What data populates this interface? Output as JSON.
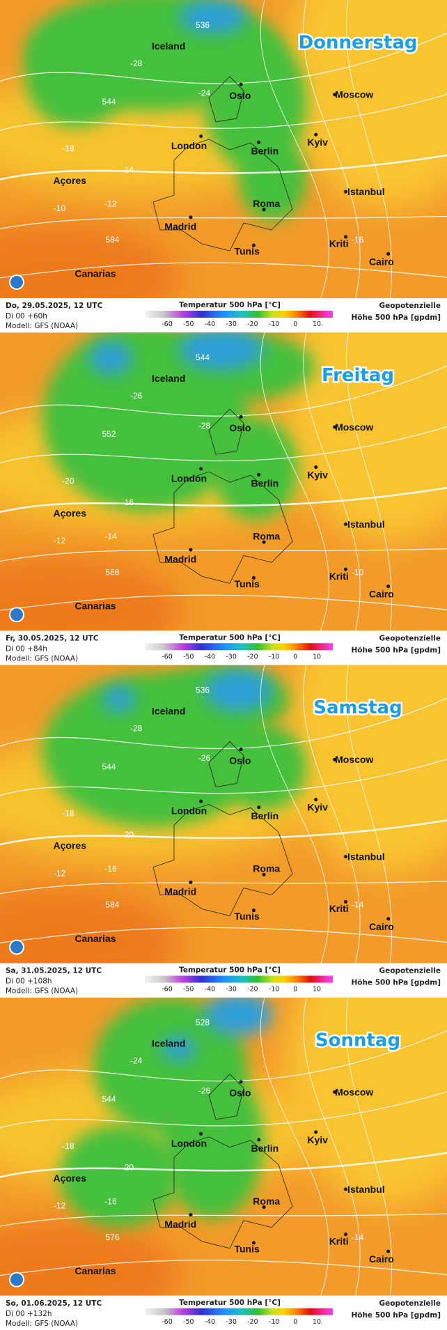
{
  "legend": {
    "title": "Temperatur 500 hPa [°C]",
    "ticks": [
      -60,
      -50,
      -40,
      -30,
      -20,
      -10,
      0,
      10
    ]
  },
  "geopotential": [
    "Geopotenzielle",
    "Höhe 500 hPa [gpdm]"
  ],
  "cities": [
    "Iceland",
    "Oslo",
    "Moscow",
    "London",
    "Berlin",
    "Kyiv",
    "Açores",
    "Istanbul",
    "Roma",
    "Madrid",
    "Tunis",
    "Kriti",
    "Cairo",
    "Canarias"
  ],
  "panels": [
    {
      "day": "Donnerstag",
      "date": "Do, 29.05.2025, 12 UTC",
      "run": "Di 00 +60h",
      "model": "Modell: GFS (NOAA)",
      "contour_labels": [
        "-28",
        "-24",
        "536",
        "544",
        "-14",
        "-18",
        "-12",
        "584",
        "-10",
        "-16"
      ]
    },
    {
      "day": "Freitag",
      "date": "Fr, 30.05.2025, 12 UTC",
      "run": "Di 00 +84h",
      "model": "Modell: GFS (NOAA)",
      "contour_labels": [
        "-26",
        "-28",
        "544",
        "552",
        "-16",
        "-20",
        "-14",
        "568",
        "-12",
        "-10"
      ]
    },
    {
      "day": "Samstag",
      "date": "Sa, 31.05.2025, 12 UTC",
      "run": "Di 00 +108h",
      "model": "Modell: GFS (NOAA)",
      "contour_labels": [
        "-28",
        "-26",
        "536",
        "544",
        "-20",
        "-18",
        "-16",
        "584",
        "-12",
        "-14"
      ]
    },
    {
      "day": "Sonntag",
      "date": "So, 01.06.2025, 12 UTC",
      "run": "Di 00 +132h",
      "model": "Modell: GFS (NOAA)",
      "contour_labels": [
        "-24",
        "-26",
        "528",
        "544",
        "-20",
        "-18",
        "-16",
        "576",
        "-12",
        "-14"
      ]
    }
  ]
}
